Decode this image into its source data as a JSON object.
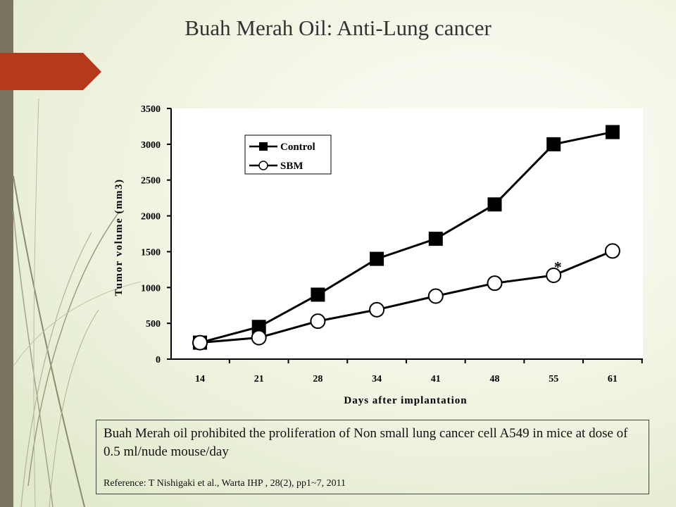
{
  "slide": {
    "title": "Buah Merah Oil: Anti-Lung cancer",
    "caption": "Buah Merah oil prohibited the proliferation of Non small lung  cancer cell A549 in mice at dose of 0.5 ml/nude mouse/day",
    "reference": "Reference: T Nishigaki et al., Warta IHP , 28(2), pp1~7, 2011"
  },
  "colors": {
    "accent_tab": "#b5391c",
    "left_bar": "#7a7560",
    "plot_bg": "#ffffff",
    "series_line": "#000000"
  },
  "chart_data": {
    "type": "line",
    "title": "",
    "xlabel": "Days after implantation",
    "ylabel": "Tumor volume (mm3)",
    "categories": [
      "14",
      "21",
      "28",
      "34",
      "41",
      "48",
      "55",
      "61"
    ],
    "ylim": [
      0,
      3500
    ],
    "yticks": [
      0,
      500,
      1000,
      1500,
      2000,
      2500,
      3000,
      3500
    ],
    "grid": false,
    "legend_position": "top-left",
    "series": [
      {
        "name": "Control",
        "marker": "filled-square",
        "values": [
          230,
          450,
          900,
          1400,
          1680,
          2160,
          3000,
          3170
        ]
      },
      {
        "name": "SBM",
        "marker": "open-circle",
        "values": [
          230,
          300,
          530,
          690,
          880,
          1060,
          1170,
          1510
        ]
      }
    ],
    "annotations": [
      {
        "text": "*",
        "category": "55",
        "y": 1330
      }
    ]
  }
}
